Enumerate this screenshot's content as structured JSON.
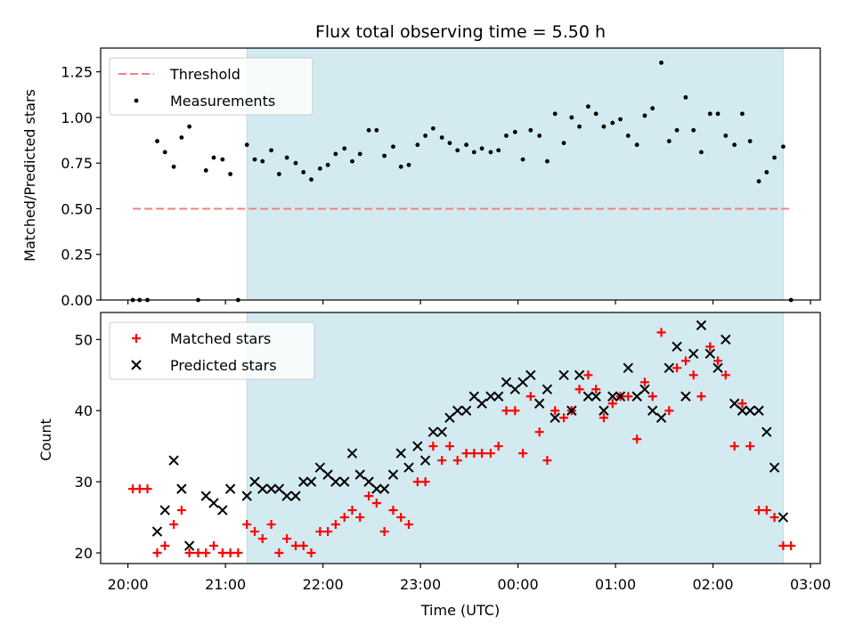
{
  "chart_data": [
    {
      "type": "scatter",
      "title": "Flux total observing time = 5.50 h",
      "xlabel": "",
      "ylabel": "Matched/Predicted stars",
      "x_unit": "hours since 20:00 UTC",
      "xlim": [
        -0.28,
        7.1
      ],
      "ylim": [
        0.0,
        1.38
      ],
      "yticks": [
        "0.00",
        "0.25",
        "0.50",
        "0.75",
        "1.00",
        "1.25"
      ],
      "ytick_values": [
        0,
        0.25,
        0.5,
        0.75,
        1.0,
        1.25
      ],
      "shaded_span": {
        "start": 1.22,
        "end": 6.72,
        "color": "#d3eaf0"
      },
      "threshold": {
        "name": "Threshold",
        "value": 0.5,
        "x_start": 0.05,
        "x_end": 6.82,
        "color": "#f08080",
        "style": "dashed"
      },
      "legend": {
        "placement": "upper-left",
        "entries": [
          "Threshold",
          "Measurements"
        ]
      },
      "series": [
        {
          "name": "Measurements",
          "color": "#000000",
          "marker": "dot",
          "points": [
            [
              0.05,
              0.0
            ],
            [
              0.12,
              0.0
            ],
            [
              0.2,
              0.0
            ],
            [
              0.3,
              0.87
            ],
            [
              0.38,
              0.81
            ],
            [
              0.47,
              0.73
            ],
            [
              0.55,
              0.89
            ],
            [
              0.63,
              0.95
            ],
            [
              0.72,
              0.0
            ],
            [
              0.8,
              0.71
            ],
            [
              0.88,
              0.78
            ],
            [
              0.97,
              0.77
            ],
            [
              1.05,
              0.69
            ],
            [
              1.13,
              0.0
            ],
            [
              1.22,
              0.85
            ],
            [
              1.3,
              0.77
            ],
            [
              1.38,
              0.76
            ],
            [
              1.47,
              0.82
            ],
            [
              1.55,
              0.69
            ],
            [
              1.63,
              0.78
            ],
            [
              1.72,
              0.75
            ],
            [
              1.8,
              0.7
            ],
            [
              1.88,
              0.66
            ],
            [
              1.97,
              0.72
            ],
            [
              2.05,
              0.74
            ],
            [
              2.13,
              0.8
            ],
            [
              2.22,
              0.83
            ],
            [
              2.3,
              0.76
            ],
            [
              2.38,
              0.8
            ],
            [
              2.47,
              0.93
            ],
            [
              2.55,
              0.93
            ],
            [
              2.63,
              0.79
            ],
            [
              2.72,
              0.84
            ],
            [
              2.8,
              0.73
            ],
            [
              2.88,
              0.74
            ],
            [
              2.97,
              0.85
            ],
            [
              3.05,
              0.9
            ],
            [
              3.13,
              0.94
            ],
            [
              3.22,
              0.89
            ],
            [
              3.3,
              0.86
            ],
            [
              3.38,
              0.82
            ],
            [
              3.47,
              0.85
            ],
            [
              3.55,
              0.81
            ],
            [
              3.63,
              0.83
            ],
            [
              3.72,
              0.81
            ],
            [
              3.8,
              0.82
            ],
            [
              3.88,
              0.9
            ],
            [
              3.97,
              0.92
            ],
            [
              4.05,
              0.77
            ],
            [
              4.13,
              0.93
            ],
            [
              4.22,
              0.9
            ],
            [
              4.3,
              0.76
            ],
            [
              4.38,
              1.02
            ],
            [
              4.47,
              0.86
            ],
            [
              4.55,
              1.0
            ],
            [
              4.63,
              0.95
            ],
            [
              4.72,
              1.06
            ],
            [
              4.8,
              1.02
            ],
            [
              4.88,
              0.95
            ],
            [
              4.97,
              0.97
            ],
            [
              5.05,
              0.99
            ],
            [
              5.13,
              0.9
            ],
            [
              5.22,
              0.85
            ],
            [
              5.3,
              1.01
            ],
            [
              5.38,
              1.05
            ],
            [
              5.47,
              1.3
            ],
            [
              5.55,
              0.87
            ],
            [
              5.63,
              0.93
            ],
            [
              5.72,
              1.11
            ],
            [
              5.8,
              0.93
            ],
            [
              5.88,
              0.81
            ],
            [
              5.97,
              1.02
            ],
            [
              6.05,
              1.02
            ],
            [
              6.13,
              0.9
            ],
            [
              6.22,
              0.85
            ],
            [
              6.3,
              1.02
            ],
            [
              6.38,
              0.87
            ],
            [
              6.47,
              0.65
            ],
            [
              6.55,
              0.7
            ],
            [
              6.63,
              0.78
            ],
            [
              6.72,
              0.84
            ],
            [
              6.8,
              0.0
            ]
          ]
        }
      ]
    },
    {
      "type": "scatter",
      "title": "",
      "xlabel": "Time (UTC)",
      "ylabel": "Count",
      "x_unit": "hours since 20:00 UTC",
      "xlim": [
        -0.28,
        7.1
      ],
      "ylim": [
        18.5,
        53.8
      ],
      "yticks": [
        "20",
        "30",
        "40",
        "50"
      ],
      "ytick_values": [
        20,
        30,
        40,
        50
      ],
      "xticks": [
        "20:00",
        "21:00",
        "22:00",
        "23:00",
        "00:00",
        "01:00",
        "02:00",
        "03:00"
      ],
      "xtick_values": [
        0,
        1,
        2,
        3,
        4,
        5,
        6,
        7
      ],
      "shaded_span": {
        "start": 1.22,
        "end": 6.72,
        "color": "#d3eaf0"
      },
      "legend": {
        "placement": "upper-left",
        "entries": [
          "Matched stars",
          "Predicted stars"
        ]
      },
      "series": [
        {
          "name": "Matched stars",
          "color": "#ff0000",
          "marker": "plus",
          "points": [
            [
              0.05,
              29
            ],
            [
              0.12,
              29
            ],
            [
              0.2,
              29
            ],
            [
              0.3,
              20
            ],
            [
              0.38,
              21
            ],
            [
              0.47,
              24
            ],
            [
              0.55,
              26
            ],
            [
              0.63,
              20
            ],
            [
              0.72,
              20
            ],
            [
              0.8,
              20
            ],
            [
              0.88,
              21
            ],
            [
              0.97,
              20
            ],
            [
              1.05,
              20
            ],
            [
              1.13,
              20
            ],
            [
              1.22,
              24
            ],
            [
              1.3,
              23
            ],
            [
              1.38,
              22
            ],
            [
              1.47,
              24
            ],
            [
              1.55,
              20
            ],
            [
              1.63,
              22
            ],
            [
              1.72,
              21
            ],
            [
              1.8,
              21
            ],
            [
              1.88,
              20
            ],
            [
              1.97,
              23
            ],
            [
              2.05,
              23
            ],
            [
              2.13,
              24
            ],
            [
              2.22,
              25
            ],
            [
              2.3,
              26
            ],
            [
              2.38,
              25
            ],
            [
              2.47,
              28
            ],
            [
              2.55,
              27
            ],
            [
              2.63,
              23
            ],
            [
              2.72,
              26
            ],
            [
              2.8,
              25
            ],
            [
              2.88,
              24
            ],
            [
              2.97,
              30
            ],
            [
              3.05,
              30
            ],
            [
              3.13,
              35
            ],
            [
              3.22,
              33
            ],
            [
              3.3,
              35
            ],
            [
              3.38,
              33
            ],
            [
              3.47,
              34
            ],
            [
              3.55,
              34
            ],
            [
              3.63,
              34
            ],
            [
              3.72,
              34
            ],
            [
              3.8,
              35
            ],
            [
              3.88,
              40
            ],
            [
              3.97,
              40
            ],
            [
              4.05,
              34
            ],
            [
              4.13,
              42
            ],
            [
              4.22,
              37
            ],
            [
              4.3,
              33
            ],
            [
              4.38,
              40
            ],
            [
              4.47,
              39
            ],
            [
              4.55,
              40
            ],
            [
              4.63,
              43
            ],
            [
              4.72,
              45
            ],
            [
              4.8,
              43
            ],
            [
              4.88,
              39
            ],
            [
              4.97,
              41
            ],
            [
              5.05,
              42
            ],
            [
              5.13,
              42
            ],
            [
              5.22,
              36
            ],
            [
              5.3,
              44
            ],
            [
              5.38,
              42
            ],
            [
              5.47,
              51
            ],
            [
              5.55,
              40
            ],
            [
              5.63,
              46
            ],
            [
              5.72,
              47
            ],
            [
              5.8,
              45
            ],
            [
              5.88,
              42
            ],
            [
              5.97,
              49
            ],
            [
              6.05,
              47
            ],
            [
              6.13,
              45
            ],
            [
              6.22,
              35
            ],
            [
              6.3,
              41
            ],
            [
              6.38,
              35
            ],
            [
              6.47,
              26
            ],
            [
              6.55,
              26
            ],
            [
              6.63,
              25
            ],
            [
              6.72,
              21
            ],
            [
              6.8,
              21
            ]
          ]
        },
        {
          "name": "Predicted stars",
          "color": "#000000",
          "marker": "x",
          "points": [
            [
              0.3,
              23
            ],
            [
              0.38,
              26
            ],
            [
              0.47,
              33
            ],
            [
              0.55,
              29
            ],
            [
              0.63,
              21
            ],
            [
              0.8,
              28
            ],
            [
              0.88,
              27
            ],
            [
              0.97,
              26
            ],
            [
              1.05,
              29
            ],
            [
              1.22,
              28
            ],
            [
              1.3,
              30
            ],
            [
              1.38,
              29
            ],
            [
              1.47,
              29
            ],
            [
              1.55,
              29
            ],
            [
              1.63,
              28
            ],
            [
              1.72,
              28
            ],
            [
              1.8,
              30
            ],
            [
              1.88,
              30
            ],
            [
              1.97,
              32
            ],
            [
              2.05,
              31
            ],
            [
              2.13,
              30
            ],
            [
              2.22,
              30
            ],
            [
              2.3,
              34
            ],
            [
              2.38,
              31
            ],
            [
              2.47,
              30
            ],
            [
              2.55,
              29
            ],
            [
              2.63,
              29
            ],
            [
              2.72,
              31
            ],
            [
              2.8,
              34
            ],
            [
              2.88,
              32
            ],
            [
              2.97,
              35
            ],
            [
              3.05,
              33
            ],
            [
              3.13,
              37
            ],
            [
              3.22,
              37
            ],
            [
              3.3,
              39
            ],
            [
              3.38,
              40
            ],
            [
              3.47,
              40
            ],
            [
              3.55,
              42
            ],
            [
              3.63,
              41
            ],
            [
              3.72,
              42
            ],
            [
              3.8,
              42
            ],
            [
              3.88,
              44
            ],
            [
              3.97,
              43
            ],
            [
              4.05,
              44
            ],
            [
              4.13,
              45
            ],
            [
              4.22,
              41
            ],
            [
              4.3,
              43
            ],
            [
              4.38,
              39
            ],
            [
              4.47,
              45
            ],
            [
              4.55,
              40
            ],
            [
              4.63,
              45
            ],
            [
              4.72,
              42
            ],
            [
              4.8,
              42
            ],
            [
              4.88,
              40
            ],
            [
              4.97,
              42
            ],
            [
              5.05,
              42
            ],
            [
              5.13,
              46
            ],
            [
              5.22,
              42
            ],
            [
              5.3,
              43
            ],
            [
              5.38,
              40
            ],
            [
              5.47,
              39
            ],
            [
              5.55,
              46
            ],
            [
              5.63,
              49
            ],
            [
              5.72,
              42
            ],
            [
              5.8,
              48
            ],
            [
              5.88,
              52
            ],
            [
              5.97,
              48
            ],
            [
              6.05,
              46
            ],
            [
              6.13,
              50
            ],
            [
              6.22,
              41
            ],
            [
              6.3,
              40
            ],
            [
              6.38,
              40
            ],
            [
              6.47,
              40
            ],
            [
              6.55,
              37
            ],
            [
              6.63,
              32
            ],
            [
              6.72,
              25
            ]
          ]
        }
      ]
    }
  ]
}
